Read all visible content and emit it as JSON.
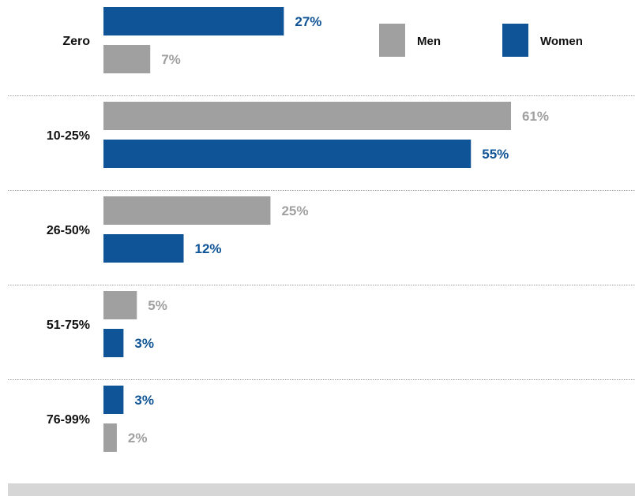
{
  "colors": {
    "men": "#a0a0a0",
    "women": "#0f5496",
    "divider": "#999999",
    "footer": "#d6d6d6"
  },
  "chart_data": {
    "type": "bar",
    "orientation": "horizontal",
    "title": "",
    "xlabel": "",
    "ylabel": "",
    "xlim": [
      0,
      70
    ],
    "grid": false,
    "legend": {
      "placement": "top-right",
      "entries": [
        "Men",
        "Women"
      ]
    },
    "categories": [
      "Zero",
      "10-25%",
      "26-50%",
      "51-75%",
      "76-99%"
    ],
    "series": [
      {
        "name": "Men",
        "values": [
          7,
          61,
          25,
          5,
          2
        ],
        "labels": [
          "7%",
          "61%",
          "25%",
          "5%",
          "2%"
        ]
      },
      {
        "name": "Women",
        "values": [
          27,
          55,
          12,
          3,
          3
        ],
        "labels": [
          "27%",
          "55%",
          "12%",
          "3%",
          "3%"
        ]
      }
    ],
    "bar_order": [
      [
        "Women",
        "Men"
      ],
      [
        "Men",
        "Women"
      ],
      [
        "Men",
        "Women"
      ],
      [
        "Men",
        "Women"
      ],
      [
        "Women",
        "Men"
      ]
    ]
  }
}
